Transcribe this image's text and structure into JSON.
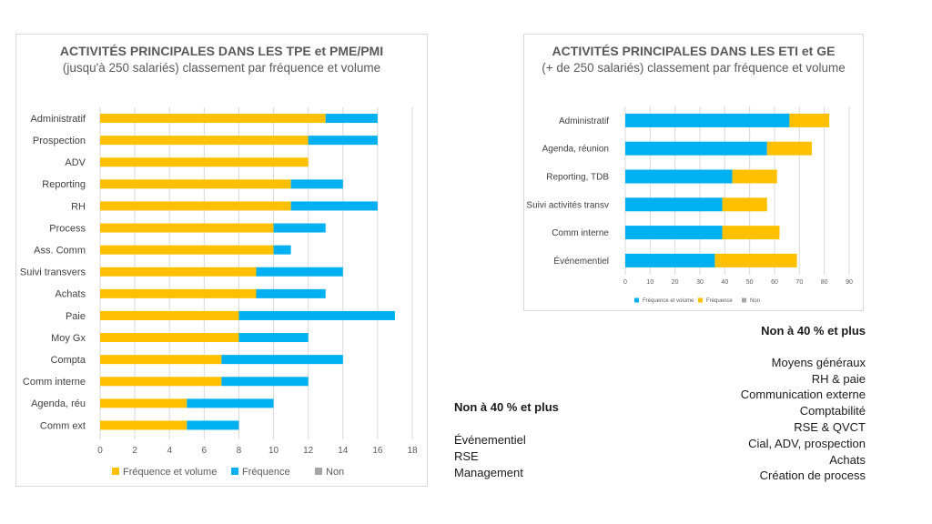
{
  "chart_data": [
    {
      "type": "bar",
      "orientation": "horizontal",
      "stacked": true,
      "title": "ACTIVITÉS PRINCIPALES DANS LES TPE et PME/PMI",
      "subtitle": "(jusqu'à 250 salariés) classement par fréquence et volume",
      "categories": [
        "Administratif",
        "Prospection",
        "ADV",
        "Reporting",
        "RH",
        "Process",
        "Ass. Comm",
        "Suivi transvers",
        "Achats",
        "Paie",
        "Moy Gx",
        "Compta",
        "Comm interne",
        "Agenda, réu",
        "Comm ext"
      ],
      "series": [
        {
          "name": "Fréquence et volume",
          "color": "#FFC000",
          "values": [
            13,
            12,
            12,
            11,
            11,
            10,
            10,
            9,
            9,
            8,
            8,
            7,
            7,
            5,
            5
          ]
        },
        {
          "name": "Fréquence",
          "color": "#00B0F0",
          "values": [
            3,
            4,
            0,
            3,
            5,
            3,
            1,
            5,
            4,
            9,
            4,
            7,
            5,
            5,
            3
          ]
        },
        {
          "name": "Non",
          "color": "#A5A5A5",
          "values": [
            0,
            0,
            0,
            0,
            0,
            0,
            0,
            0,
            0,
            0,
            0,
            0,
            0,
            0,
            0
          ]
        }
      ],
      "xlim": [
        0,
        18
      ],
      "xticks": [
        "0",
        "2",
        "4",
        "6",
        "8",
        "10",
        "12",
        "14",
        "16",
        "18"
      ],
      "grid": true,
      "legend": "bottom"
    },
    {
      "type": "bar",
      "orientation": "horizontal",
      "stacked": true,
      "title": "ACTIVITÉS PRINCIPALES DANS LES ETI et GE",
      "subtitle": "(+ de 250 salariés) classement par fréquence et volume",
      "categories": [
        "Administratif",
        "Agenda, réunion",
        "Reporting, TDB",
        "Suivi activités transv",
        "Comm interne",
        "Événementiel"
      ],
      "series": [
        {
          "name": "Fréquence et volume",
          "color": "#00B0F0",
          "values": [
            66,
            57,
            43,
            39,
            39,
            36
          ]
        },
        {
          "name": "Fréquence",
          "color": "#FFC000",
          "values": [
            16,
            18,
            18,
            18,
            23,
            33
          ]
        },
        {
          "name": "Non",
          "color": "#A5A5A5",
          "values": [
            0,
            0,
            0,
            0,
            0,
            0
          ]
        }
      ],
      "xlim": [
        0,
        90
      ],
      "xticks": [
        "0",
        "10",
        "20",
        "30",
        "40",
        "50",
        "60",
        "70",
        "80",
        "90"
      ],
      "grid": true,
      "legend": "bottom"
    }
  ],
  "notes_left": {
    "heading": "Non à 40 % et plus",
    "items": [
      "Événementiel",
      "RSE",
      "Management"
    ]
  },
  "notes_right": {
    "heading": "Non à 40 % et plus",
    "items": [
      "Moyens généraux",
      "RH & paie",
      "Communication externe",
      "Comptabilité",
      "RSE & QVCT",
      "Cial, ADV, prospection",
      "Achats",
      "Création de process"
    ]
  }
}
